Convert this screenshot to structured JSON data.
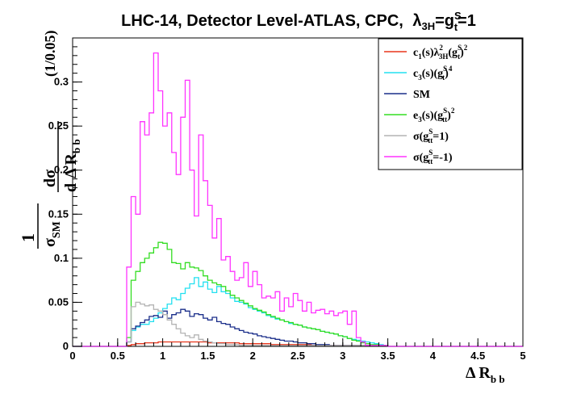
{
  "chart_data": {
    "type": "line",
    "title_parts": {
      "prefix": "LHC-14, Detector Level-ATLAS, CPC,",
      "lambda": "λ",
      "lambda_sub": "3H",
      "eq": "=g",
      "g_sup": "S",
      "g_sub": "t",
      "suffix": "=1"
    },
    "xlabel": {
      "main": "Δ R",
      "sub": "b b"
    },
    "ylabel": {
      "one": "1",
      "sigma_sm": "σ",
      "sm_sub": "SM",
      "dsigma": "dσ",
      "d": "d",
      "dr": "Δ R",
      "dr_sub": "b b",
      "binning": "(1/0.05)"
    },
    "xlim": [
      0,
      5
    ],
    "ylim": [
      0,
      0.35
    ],
    "x_ticks": [
      "0",
      "0.5",
      "1",
      "1.5",
      "2",
      "2.5",
      "3",
      "3.5",
      "4",
      "4.5",
      "5"
    ],
    "y_ticks": [
      "0",
      "0.05",
      "0.1",
      "0.15",
      "0.2",
      "0.25",
      "0.3"
    ],
    "bin_width": 0.05,
    "legend_position": "top-right",
    "series": [
      {
        "name": "c1(s)λ3H²(gt^S)²",
        "color": "#e8351c",
        "x_start": 0.6,
        "values": [
          0.001,
          0.002,
          0.003,
          0.003,
          0.004,
          0.004,
          0.004,
          0.005,
          0.005,
          0.005,
          0.005,
          0.005,
          0.005,
          0.005,
          0.005,
          0.005,
          0.005,
          0.005,
          0.004,
          0.004,
          0.004,
          0.004,
          0.004,
          0.004,
          0.004,
          0.003,
          0.003,
          0.003,
          0.003,
          0.003,
          0.003,
          0.003,
          0.002,
          0.002,
          0.002,
          0.002,
          0.002,
          0.002,
          0.002,
          0.002,
          0.002,
          0.001,
          0.001,
          0.001,
          0.001,
          0.001,
          0.001,
          0.001,
          0.001,
          0.001,
          0.001,
          0.001,
          0.001,
          0.001,
          0.001,
          0.001,
          0.001,
          0.001
        ]
      },
      {
        "name": "c3(s)(gt^S)⁴",
        "color": "#22e0f0",
        "x_start": 0.6,
        "values": [
          0.005,
          0.018,
          0.022,
          0.025,
          0.025,
          0.028,
          0.032,
          0.038,
          0.043,
          0.048,
          0.055,
          0.053,
          0.06,
          0.066,
          0.071,
          0.078,
          0.068,
          0.073,
          0.065,
          0.061,
          0.068,
          0.062,
          0.06,
          0.055,
          0.051,
          0.05,
          0.048,
          0.044,
          0.042,
          0.04,
          0.038,
          0.035,
          0.033,
          0.031,
          0.03,
          0.028,
          0.026,
          0.025,
          0.024,
          0.022,
          0.021,
          0.02,
          0.019,
          0.017,
          0.016,
          0.015,
          0.014,
          0.012,
          0.011,
          0.009,
          0.008,
          0.007,
          0.006,
          0.005,
          0.004,
          0.003,
          0.002,
          0.001
        ]
      },
      {
        "name": "SM",
        "color": "#1a2e8a",
        "x_start": 0.6,
        "values": [
          0.005,
          0.02,
          0.023,
          0.027,
          0.03,
          0.034,
          0.035,
          0.033,
          0.04,
          0.032,
          0.036,
          0.038,
          0.042,
          0.04,
          0.034,
          0.037,
          0.036,
          0.032,
          0.03,
          0.033,
          0.028,
          0.026,
          0.025,
          0.022,
          0.02,
          0.018,
          0.016,
          0.015,
          0.014,
          0.012,
          0.011,
          0.01,
          0.009,
          0.008,
          0.007,
          0.006,
          0.006,
          0.005,
          0.004,
          0.004,
          0.003,
          0.003,
          0.002,
          0.002,
          0.002,
          0.001,
          0.001,
          0.001,
          0.001,
          0.001,
          0.001,
          0.001,
          0.001,
          0.001,
          0.001,
          0.001,
          0.001,
          0.001
        ]
      },
      {
        "name": "e3(s)(gtt^S)²",
        "color": "#33dd22",
        "x_start": 0.6,
        "values": [
          0.01,
          0.075,
          0.085,
          0.095,
          0.1,
          0.106,
          0.112,
          0.118,
          0.117,
          0.11,
          0.095,
          0.094,
          0.088,
          0.095,
          0.09,
          0.089,
          0.086,
          0.08,
          0.075,
          0.072,
          0.07,
          0.068,
          0.063,
          0.058,
          0.055,
          0.052,
          0.049,
          0.046,
          0.043,
          0.041,
          0.039,
          0.036,
          0.034,
          0.032,
          0.03,
          0.028,
          0.027,
          0.025,
          0.024,
          0.022,
          0.021,
          0.02,
          0.019,
          0.017,
          0.016,
          0.015,
          0.014,
          0.012,
          0.011,
          0.009,
          0.007,
          0.006,
          0.004,
          0.003,
          0.002,
          0.002,
          0.001,
          0.001
        ]
      },
      {
        "name": "σ(gtt^S=1)",
        "color": "#b4b4b4",
        "x_start": 0.6,
        "values": [
          0.005,
          0.045,
          0.05,
          0.048,
          0.046,
          0.047,
          0.042,
          0.04,
          0.036,
          0.03,
          0.025,
          0.02,
          0.015,
          0.012,
          0.01,
          0.013,
          0.008,
          0.006,
          0.005,
          0.004,
          0.003,
          0.003,
          0.002,
          0.002,
          0.002,
          0.001,
          0.001,
          0.001,
          0.001,
          0.001,
          0.001,
          0.001,
          0.001,
          0.001,
          0.001,
          0.001,
          0.001,
          0.001,
          0.001,
          0.001,
          0.001,
          0.001,
          0.001,
          0.001,
          0.001,
          0.001,
          0.001,
          0.001,
          0.001,
          0.001,
          0.001,
          0.001,
          0.001,
          0.001,
          0.001,
          0.001,
          0.001,
          0.001
        ]
      },
      {
        "name": "σ(gtt^S=-1)",
        "color": "#ff33ff",
        "x_start": 0.6,
        "values": [
          0.09,
          0.17,
          0.15,
          0.255,
          0.24,
          0.265,
          0.333,
          0.29,
          0.25,
          0.265,
          0.22,
          0.195,
          0.26,
          0.302,
          0.2,
          0.148,
          0.24,
          0.188,
          0.16,
          0.123,
          0.145,
          0.098,
          0.102,
          0.085,
          0.075,
          0.078,
          0.095,
          0.068,
          0.085,
          0.07,
          0.055,
          0.057,
          0.055,
          0.062,
          0.04,
          0.055,
          0.045,
          0.06,
          0.052,
          0.04,
          0.05,
          0.038,
          0.041,
          0.042,
          0.037,
          0.04,
          0.035,
          0.038,
          0.04,
          0.025,
          0.04,
          0.01,
          0.005,
          0.001,
          0.001,
          0.001,
          0.001,
          0.001
        ]
      }
    ],
    "legend": [
      {
        "label": "c",
        "sub": "1",
        "tail": "(s)λ",
        "sub2": "3H",
        "sup2": "2",
        "tail2": "(g",
        "sub3": "t",
        "sup3": "S",
        "tail3": ")",
        "sup4": "2"
      },
      {
        "label": "c",
        "sub": "3",
        "tail": "(s)(g",
        "sub2": "t",
        "sup2": "S",
        "tail2": ")",
        "sup3": "4"
      },
      {
        "label": "SM"
      },
      {
        "label": "e",
        "sub": "3",
        "tail": "(s)(g",
        "sub2": "tt",
        "sup2": "S",
        "tail2": ")",
        "sup3": "2"
      },
      {
        "label": "σ(g",
        "sub": "tt",
        "sup": "S",
        "tail": "=1)"
      },
      {
        "label": "σ(g",
        "sub": "tt",
        "sup": "S",
        "tail": "=-1)"
      }
    ]
  }
}
